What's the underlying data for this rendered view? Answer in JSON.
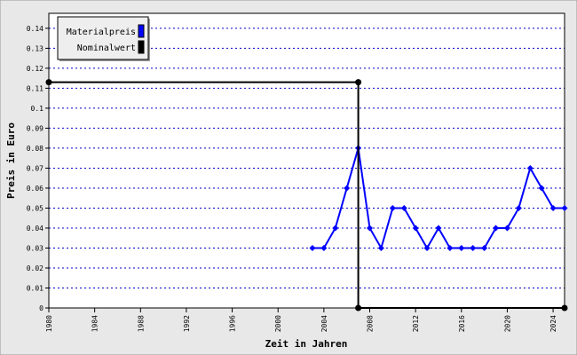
{
  "chart_data": {
    "type": "line",
    "xlabel": "Zeit in Jahren",
    "ylabel": "Preis in Euro",
    "xlim": [
      1980,
      2025
    ],
    "xticks": [
      1980,
      1984,
      1988,
      1992,
      1996,
      2000,
      2004,
      2008,
      2012,
      2016,
      2020,
      2024
    ],
    "ylim": [
      0,
      0.1475
    ],
    "yticks": [
      0,
      0.01,
      0.02,
      0.03,
      0.04,
      0.05,
      0.06,
      0.07,
      0.08,
      0.09,
      0.1,
      0.11,
      0.12,
      0.13,
      0.14
    ],
    "grid": true,
    "legend": "upper left",
    "series": [
      {
        "name": "Materialpreis",
        "color": "#0000ff",
        "x": [
          2003,
          2004,
          2005,
          2006,
          2007,
          2008,
          2009,
          2010,
          2011,
          2012,
          2013,
          2014,
          2015,
          2016,
          2017,
          2018,
          2019,
          2020,
          2021,
          2022,
          2023,
          2024,
          2025
        ],
        "values": [
          0.03,
          0.03,
          0.04,
          0.06,
          0.08,
          0.04,
          0.03,
          0.05,
          0.05,
          0.04,
          0.03,
          0.04,
          0.03,
          0.03,
          0.03,
          0.03,
          0.04,
          0.04,
          0.05,
          0.07,
          0.06,
          0.05,
          0.05
        ]
      },
      {
        "name": "Nominalwert",
        "color": "#000000",
        "x": [
          1980,
          2007,
          2007,
          2025
        ],
        "values": [
          0.113,
          0.113,
          0,
          0
        ]
      }
    ]
  }
}
